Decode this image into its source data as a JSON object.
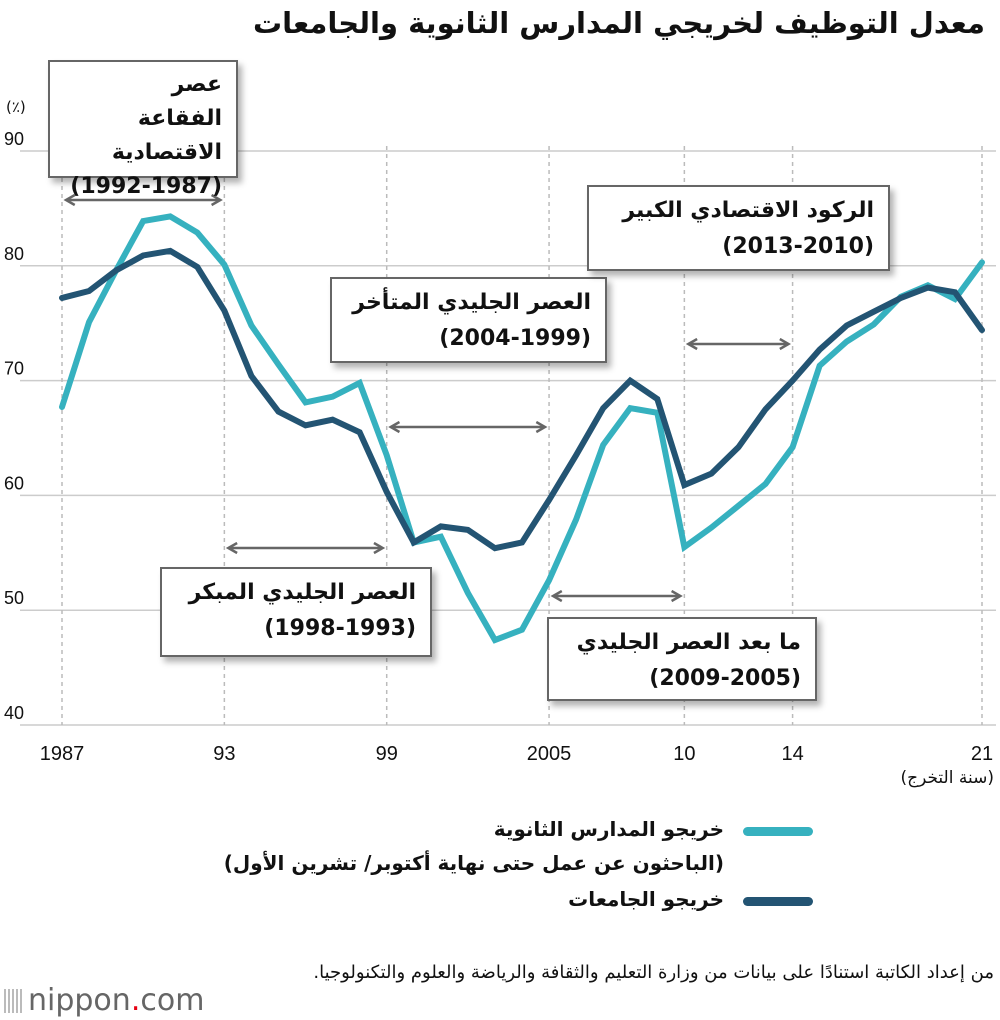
{
  "title": "معدل التوظيف لخريجي المدارس الثانوية والجامعات",
  "unit_label": "(٪)",
  "x_unit_label": "(سنة التخرج)",
  "colors": {
    "high_school": "#36b1bf",
    "university": "#235473",
    "grid": "#cccccc",
    "arrow": "#666666"
  },
  "periods": [
    {
      "label": "عصر الفقاعة الاقتصادية",
      "range": "(1992-1987)",
      "start": 1987,
      "end": 1993
    },
    {
      "label": "العصر الجليدي المبكر",
      "range": "(1998-1993)",
      "start": 1993,
      "end": 1999
    },
    {
      "label": "العصر الجليدي المتأخر",
      "range": "(2004-1999)",
      "start": 1999,
      "end": 2005
    },
    {
      "label": "ما بعد العصر الجليدي",
      "range": "(2009-2005)",
      "start": 2005,
      "end": 2010
    },
    {
      "label": "الركود الاقتصادي الكبير",
      "range": "(2013-2010)",
      "start": 2010,
      "end": 2014
    }
  ],
  "legend": {
    "high_school": "خريجو المدارس الثانوية",
    "high_school_note": "(الباحثون عن عمل حتى نهاية أكتوبر/ تشرين الأول)",
    "university": "خريجو الجامعات"
  },
  "source": "من إعداد الكاتبة استنادًا على بيانات من وزارة التعليم والثقافة والرياضة والعلوم والتكنولوجيا.",
  "logo": {
    "name": "nippon",
    "dot": ".",
    "suffix": "com"
  },
  "chart_data": {
    "type": "line",
    "title": "معدل التوظيف لخريجي المدارس الثانوية والجامعات",
    "xlabel": "(سنة التخرج)",
    "ylabel": "(٪)",
    "xlim": [
      1987,
      2021
    ],
    "ylim": [
      40,
      90
    ],
    "grid": true,
    "legend_position": "bottom",
    "x_ticks": [
      {
        "year": 1987,
        "label": "1987"
      },
      {
        "year": 1993,
        "label": "93"
      },
      {
        "year": 1999,
        "label": "99"
      },
      {
        "year": 2005,
        "label": "2005"
      },
      {
        "year": 2010,
        "label": "10"
      },
      {
        "year": 2014,
        "label": "14"
      },
      {
        "year": 2021,
        "label": "21"
      }
    ],
    "y_ticks": [
      40,
      50,
      60,
      70,
      80,
      90
    ],
    "x": [
      1987,
      1988,
      1989,
      1990,
      1991,
      1992,
      1993,
      1994,
      1995,
      1996,
      1997,
      1998,
      1999,
      2000,
      2001,
      2002,
      2003,
      2004,
      2005,
      2006,
      2007,
      2008,
      2009,
      2010,
      2011,
      2012,
      2013,
      2014,
      2015,
      2016,
      2017,
      2018,
      2019,
      2020,
      2021
    ],
    "series": [
      {
        "name": "خريجو المدارس الثانوية",
        "key": "high_school",
        "values": [
          67.7,
          75.1,
          79.6,
          83.9,
          84.3,
          82.9,
          80.1,
          74.8,
          71.4,
          68.1,
          68.6,
          69.8,
          63.5,
          55.9,
          56.4,
          51.5,
          47.4,
          48.3,
          52.6,
          57.9,
          64.4,
          67.6,
          67.2,
          55.5,
          57.2,
          59.1,
          61.0,
          64.2,
          71.3,
          73.4,
          74.9,
          77.3,
          78.3,
          77.1,
          80.3
        ]
      },
      {
        "name": "خريجو الجامعات",
        "key": "university",
        "values": [
          77.2,
          77.8,
          79.6,
          80.9,
          81.3,
          79.9,
          76.1,
          70.4,
          67.3,
          66.1,
          66.6,
          65.5,
          60.3,
          55.9,
          57.3,
          57.0,
          55.4,
          55.9,
          59.6,
          63.5,
          67.6,
          70.0,
          68.4,
          60.9,
          61.9,
          64.2,
          67.5,
          70.0,
          72.7,
          74.8,
          76.0,
          77.2,
          78.1,
          77.7,
          74.4
        ]
      }
    ]
  }
}
